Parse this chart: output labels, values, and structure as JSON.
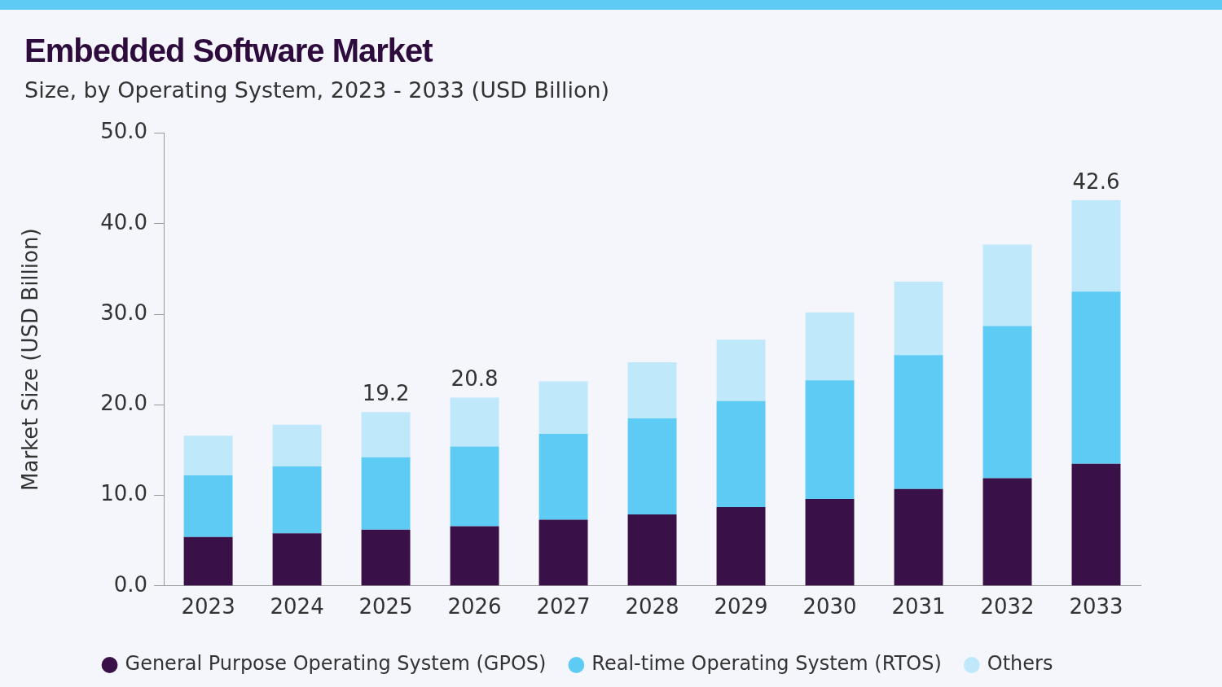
{
  "chart_data": {
    "type": "bar",
    "title": "Embedded Software Market",
    "subtitle": "Size, by Operating System, 2023 - 2033 (USD Billion)",
    "ylabel": "Market Size (USD Billion)",
    "categories": [
      "2023",
      "2024",
      "2025",
      "2026",
      "2027",
      "2028",
      "2029",
      "2030",
      "2031",
      "2032",
      "2033"
    ],
    "series": [
      {
        "name": "General Purpose Operating System (GPOS)",
        "color": "#3a1048",
        "values": [
          5.4,
          5.8,
          6.2,
          6.6,
          7.3,
          7.9,
          8.7,
          9.6,
          10.7,
          11.9,
          13.5
        ]
      },
      {
        "name": "Real-time Operating System (RTOS)",
        "color": "#5ecbf5",
        "values": [
          6.8,
          7.4,
          8.0,
          8.8,
          9.5,
          10.6,
          11.7,
          13.1,
          14.8,
          16.8,
          19.0
        ]
      },
      {
        "name": "Others",
        "color": "#c0e8fb",
        "values": [
          4.4,
          4.6,
          5.0,
          5.4,
          5.8,
          6.2,
          6.8,
          7.5,
          8.1,
          9.0,
          10.1
        ]
      }
    ],
    "stacked": true,
    "totals": [
      null,
      null,
      "19.2",
      "20.8",
      null,
      null,
      null,
      null,
      null,
      null,
      "42.6"
    ],
    "ylim": [
      0,
      50
    ],
    "yticks": [
      {
        "value": 0,
        "label": "0.0"
      },
      {
        "value": 10,
        "label": "10.0"
      },
      {
        "value": 20,
        "label": "20.0"
      },
      {
        "value": 30,
        "label": "30.0"
      },
      {
        "value": 40,
        "label": "40.0"
      },
      {
        "value": 50,
        "label": "50.0"
      }
    ],
    "grid": false,
    "legend": "bottom",
    "marker": "circle"
  }
}
